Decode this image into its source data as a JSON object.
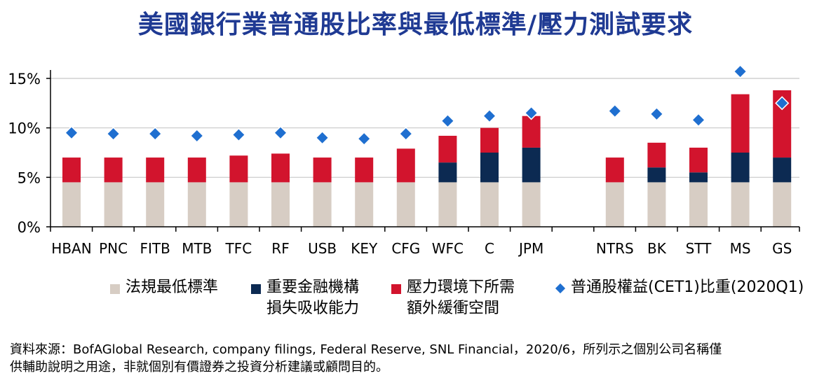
{
  "title": "美國銀行業普通股比率與最低標準/壓力測試要求",
  "colors": {
    "title": "#1f3a93",
    "regulatory_minimum": "#d7cdc4",
    "gsib": "#0c2a52",
    "stress_buffer": "#d2142d",
    "cet1_marker": "#1f6fd0",
    "axis": "#000000",
    "grid": "#c8c8c8"
  },
  "legend": {
    "regulatory_minimum": "法規最低標準",
    "gsib_line1": "重要金融機構",
    "gsib_line2": "損失吸收能力",
    "stress_line1": "壓力環境下所需",
    "stress_line2": "額外緩衝空間",
    "cet1": "普通股權益(CET1)比重(2020Q1)"
  },
  "source_line1": "資料來源：BofAGlobal Research, company filings, Federal Reserve, SNL Financial，2020/6，所列示之個別公司名稱僅",
  "source_line2": "供輔助說明之用途，非就個別有價證券之投資分析建議或顧問目的。",
  "chart_data": {
    "type": "bar",
    "stacked": true,
    "categories": [
      "HBAN",
      "PNC",
      "FITB",
      "MTB",
      "TFC",
      "RF",
      "USB",
      "KEY",
      "CFG",
      "WFC",
      "C",
      "JPM",
      "NTRS",
      "BK",
      "STT",
      "MS",
      "GS"
    ],
    "series": [
      {
        "name": "法規最低標準",
        "values": [
          4.5,
          4.5,
          4.5,
          4.5,
          4.5,
          4.5,
          4.5,
          4.5,
          4.5,
          4.5,
          4.5,
          4.5,
          4.5,
          4.5,
          4.5,
          4.5,
          4.5
        ]
      },
      {
        "name": "重要金融機構損失吸收能力",
        "values": [
          0,
          0,
          0,
          0,
          0,
          0,
          0,
          0,
          0,
          2.0,
          3.0,
          3.5,
          0,
          1.5,
          1.0,
          3.0,
          2.5
        ]
      },
      {
        "name": "壓力環境下所需額外緩衝空間",
        "values": [
          2.5,
          2.5,
          2.5,
          2.5,
          2.7,
          2.9,
          2.5,
          2.5,
          3.4,
          2.7,
          2.5,
          3.2,
          2.5,
          2.5,
          2.5,
          5.9,
          6.8
        ]
      }
    ],
    "markers": {
      "name": "普通股權益(CET1)比重(2020Q1)",
      "values": [
        9.5,
        9.4,
        9.4,
        9.2,
        9.3,
        9.5,
        9.0,
        8.9,
        9.4,
        10.7,
        11.2,
        11.5,
        11.7,
        11.4,
        10.8,
        15.7,
        12.5
      ]
    },
    "yticks": [
      "0%",
      "5%",
      "10%",
      "15%"
    ],
    "ylim": [
      0,
      15.5
    ],
    "grid": true
  }
}
